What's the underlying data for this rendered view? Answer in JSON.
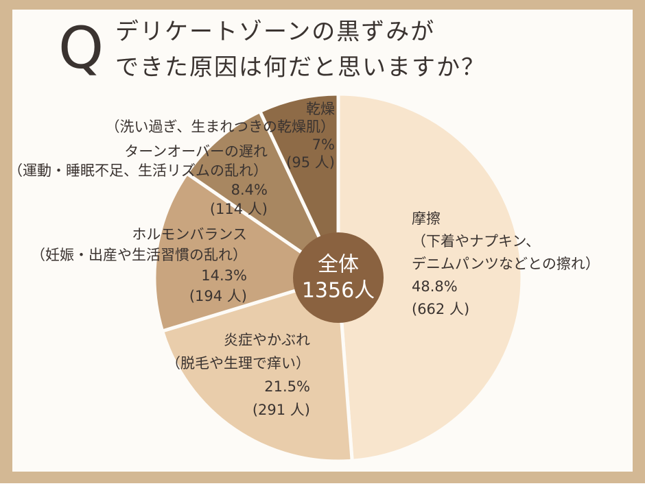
{
  "chart_data": {
    "type": "pie",
    "title_mark": "Q",
    "title_lines": [
      "デリケートゾーンの黒ずみが",
      "できた原因は何だと思いますか？"
    ],
    "categories": [
      "摩擦",
      "炎症やかぶれ",
      "ホルモンバランス",
      "ターンオーバーの遅れ",
      "乾燥"
    ],
    "details": [
      [
        "（下着やナプキン、",
        "デニムパンツなどとの擦れ）"
      ],
      [
        "（脱毛や生理で痒い）"
      ],
      [
        "（妊娠・出産や生活習慣の乱れ）"
      ],
      [
        "（運動・睡眠不足、生活リズムの乱れ）"
      ],
      [
        "（洗い過ぎ、生まれつきの乾燥肌）"
      ]
    ],
    "values": [
      48.8,
      21.5,
      14.3,
      8.4,
      7
    ],
    "value_labels": [
      "48.8%",
      "21.5%",
      "14.3%",
      "8.4%",
      "7%"
    ],
    "counts": [
      662,
      291,
      194,
      114,
      95
    ],
    "count_labels": [
      "(662 人)",
      "(291 人)",
      "(194 人)",
      "(114 人)",
      "(95 人)"
    ],
    "colors": [
      "#f8e5cd",
      "#e9cdab",
      "#c9a57f",
      "#a88761",
      "#8e6b47"
    ],
    "center_lines": [
      "全体",
      "1356人"
    ],
    "center_color": "#8a6240"
  }
}
